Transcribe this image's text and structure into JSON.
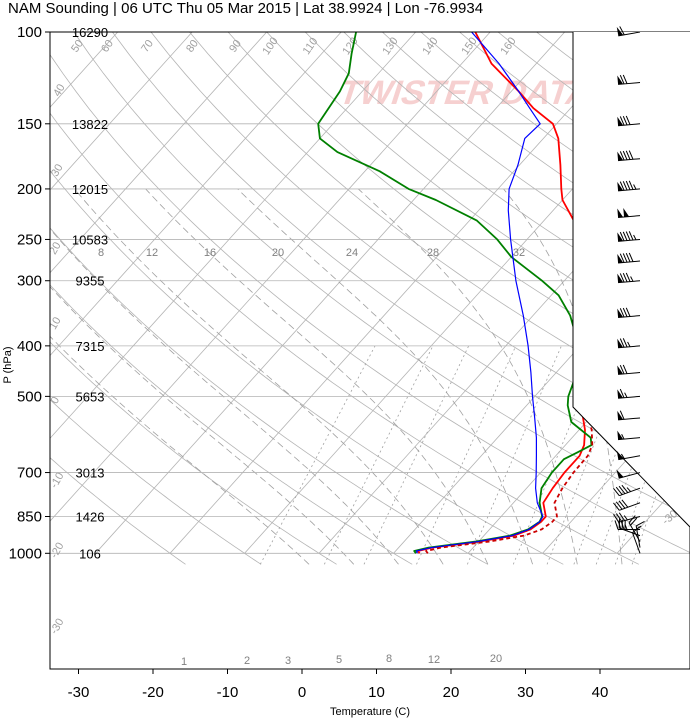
{
  "chart_data": {
    "type": "skew-t",
    "title": "NAM Sounding | 06 UTC Thu 05 Mar 2015 | Lat 38.9924 | Lon -76.9934",
    "xlabel": "Temperature (C)",
    "ylabel": "P (hPa)",
    "watermark": "TWISTER DATA.COM",
    "x_ticks": [
      -30,
      -20,
      -10,
      0,
      10,
      20,
      30,
      40
    ],
    "p_ticks": [
      100,
      150,
      200,
      250,
      300,
      400,
      500,
      700,
      850,
      1000
    ],
    "heights": [
      {
        "p": 100,
        "label": "16290"
      },
      {
        "p": 150,
        "label": "13822"
      },
      {
        "p": 200,
        "label": "12015"
      },
      {
        "p": 250,
        "label": "10583"
      },
      {
        "p": 300,
        "label": "9355"
      },
      {
        "p": 400,
        "label": "7315"
      },
      {
        "p": 500,
        "label": "5653"
      },
      {
        "p": 700,
        "label": "3013"
      },
      {
        "p": 850,
        "label": "1426"
      },
      {
        "p": 1000,
        "label": "106"
      }
    ],
    "mixing_ratio_labels": [
      "8",
      "12",
      "16",
      "20",
      "24",
      "28",
      "32"
    ],
    "bottom_mixing_labels": [
      "1",
      "2",
      "3",
      "5",
      "8",
      "12",
      "20"
    ],
    "dry_adiabat_labels": [
      "40",
      "50",
      "60",
      "70",
      "80",
      "90",
      "100",
      "110",
      "120",
      "130",
      "140",
      "150",
      "160"
    ],
    "right_labels": [
      "30",
      "20",
      "10",
      "0",
      "-10",
      "-20",
      "-30"
    ],
    "left_labels": [
      "40",
      "30",
      "20",
      "10",
      "0",
      "-10",
      "-20",
      "-30"
    ],
    "series": [
      {
        "name": "temperature",
        "color": "#ff0000",
        "points": [
          [
            1000,
            3.5
          ],
          [
            990,
            3.0
          ],
          [
            975,
            4.5
          ],
          [
            950,
            10
          ],
          [
            925,
            14
          ],
          [
            900,
            15.5
          ],
          [
            870,
            16
          ],
          [
            850,
            16
          ],
          [
            800,
            14
          ],
          [
            750,
            13.5
          ],
          [
            700,
            13.2
          ],
          [
            650,
            13.2
          ],
          [
            620,
            12.5
          ],
          [
            580,
            10.8
          ],
          [
            540,
            8.5
          ],
          [
            500,
            6.5
          ],
          [
            450,
            4.5
          ],
          [
            400,
            2.5
          ],
          [
            370,
            0.5
          ],
          [
            350,
            -1.5
          ],
          [
            300,
            -6
          ],
          [
            280,
            -9
          ],
          [
            250,
            -13
          ],
          [
            230,
            -16
          ],
          [
            210,
            -20
          ],
          [
            200,
            -21.5
          ],
          [
            180,
            -24.5
          ],
          [
            160,
            -28
          ],
          [
            150,
            -30.5
          ],
          [
            140,
            -35
          ],
          [
            130,
            -39
          ],
          [
            115,
            -46
          ],
          [
            100,
            -52
          ]
        ]
      },
      {
        "name": "dewpoint",
        "color": "#008000",
        "points": [
          [
            1000,
            3.0
          ],
          [
            990,
            2.5
          ],
          [
            975,
            4.0
          ],
          [
            950,
            9.5
          ],
          [
            925,
            13.5
          ],
          [
            900,
            15.2
          ],
          [
            870,
            15.8
          ],
          [
            850,
            15.5
          ],
          [
            800,
            13.5
          ],
          [
            750,
            12
          ],
          [
            700,
            11.5
          ],
          [
            660,
            11.5
          ],
          [
            640,
            12.5
          ],
          [
            620,
            13.5
          ],
          [
            600,
            12.5
          ],
          [
            560,
            8
          ],
          [
            520,
            5.5
          ],
          [
            500,
            4.5
          ],
          [
            470,
            3.5
          ],
          [
            440,
            2
          ],
          [
            420,
            1.5
          ],
          [
            400,
            -0.5
          ],
          [
            370,
            -3
          ],
          [
            350,
            -5
          ],
          [
            320,
            -9
          ],
          [
            300,
            -13
          ],
          [
            270,
            -20
          ],
          [
            250,
            -24
          ],
          [
            230,
            -29
          ],
          [
            210,
            -37
          ],
          [
            200,
            -42
          ],
          [
            185,
            -48
          ],
          [
            170,
            -56
          ],
          [
            160,
            -60
          ],
          [
            150,
            -62
          ],
          [
            130,
            -63
          ],
          [
            120,
            -64
          ],
          [
            110,
            -66
          ],
          [
            100,
            -68
          ]
        ]
      },
      {
        "name": "parcel",
        "color": "#0000ff",
        "points": [
          [
            1000,
            3.2
          ],
          [
            990,
            2.8
          ],
          [
            975,
            4.4
          ],
          [
            950,
            9.8
          ],
          [
            925,
            13.8
          ],
          [
            900,
            15.3
          ],
          [
            870,
            15.8
          ],
          [
            850,
            15.6
          ],
          [
            800,
            13.2
          ],
          [
            750,
            11.2
          ],
          [
            700,
            9.4
          ],
          [
            650,
            7.4
          ],
          [
            600,
            5.2
          ],
          [
            550,
            2.6
          ],
          [
            500,
            -0.3
          ],
          [
            450,
            -3.4
          ],
          [
            400,
            -7
          ],
          [
            350,
            -11.3
          ],
          [
            300,
            -16.5
          ],
          [
            250,
            -22.2
          ],
          [
            220,
            -26
          ],
          [
            200,
            -28.5
          ],
          [
            180,
            -30.2
          ],
          [
            160,
            -32.5
          ],
          [
            150,
            -32.2
          ],
          [
            140,
            -35.5
          ],
          [
            130,
            -39
          ],
          [
            115,
            -45
          ],
          [
            100,
            -52.5
          ]
        ]
      },
      {
        "name": "virtual-temperature",
        "color": "#cc0000",
        "points": [
          [
            1000,
            4.6
          ],
          [
            990,
            4.1
          ],
          [
            975,
            5.7
          ],
          [
            950,
            11.3
          ],
          [
            925,
            15.4
          ],
          [
            900,
            17.0
          ],
          [
            870,
            17.5
          ],
          [
            850,
            17.5
          ],
          [
            800,
            15.5
          ],
          [
            750,
            14.8
          ],
          [
            700,
            14.4
          ],
          [
            650,
            14.3
          ],
          [
            620,
            13.6
          ],
          [
            580,
            11.7
          ],
          [
            540,
            9.2
          ],
          [
            500,
            7.1
          ],
          [
            450,
            5.0
          ],
          [
            400,
            2.9
          ],
          [
            370,
            0.8
          ],
          [
            350,
            -1.3
          ],
          [
            300,
            -5.9
          ]
        ]
      }
    ],
    "winds": [
      {
        "p": 1000,
        "dir": 340,
        "kt": 10
      },
      {
        "p": 975,
        "dir": 350,
        "kt": 15
      },
      {
        "p": 950,
        "dir": 330,
        "kt": 20
      },
      {
        "p": 925,
        "dir": 290,
        "kt": 30
      },
      {
        "p": 900,
        "dir": 270,
        "kt": 35
      },
      {
        "p": 850,
        "dir": 255,
        "kt": 35
      },
      {
        "p": 800,
        "dir": 250,
        "kt": 40
      },
      {
        "p": 750,
        "dir": 250,
        "kt": 45
      },
      {
        "p": 700,
        "dir": 255,
        "kt": 50
      },
      {
        "p": 650,
        "dir": 260,
        "kt": 55
      },
      {
        "p": 600,
        "dir": 265,
        "kt": 55
      },
      {
        "p": 550,
        "dir": 265,
        "kt": 60
      },
      {
        "p": 500,
        "dir": 265,
        "kt": 65
      },
      {
        "p": 450,
        "dir": 265,
        "kt": 70
      },
      {
        "p": 400,
        "dir": 265,
        "kt": 75
      },
      {
        "p": 350,
        "dir": 265,
        "kt": 80
      },
      {
        "p": 300,
        "dir": 265,
        "kt": 85
      },
      {
        "p": 275,
        "dir": 265,
        "kt": 90
      },
      {
        "p": 250,
        "dir": 265,
        "kt": 95
      },
      {
        "p": 225,
        "dir": 265,
        "kt": 100
      },
      {
        "p": 200,
        "dir": 265,
        "kt": 95
      },
      {
        "p": 175,
        "dir": 265,
        "kt": 90
      },
      {
        "p": 150,
        "dir": 265,
        "kt": 80
      },
      {
        "p": 125,
        "dir": 265,
        "kt": 70
      },
      {
        "p": 100,
        "dir": 260,
        "kt": 60
      }
    ]
  }
}
